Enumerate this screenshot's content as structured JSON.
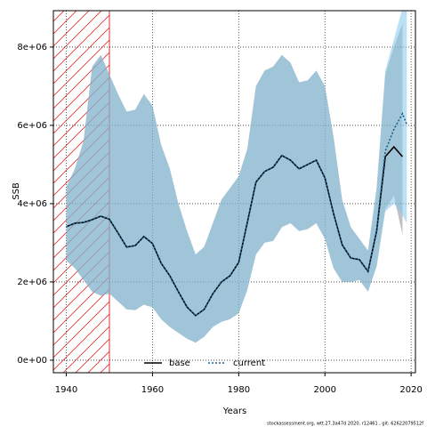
{
  "chart_data": {
    "type": "line",
    "x_label": "Years",
    "y_label": "SSB",
    "footer": "stockassessment.org, wtt.27.3a47d   2020, r12461 , git: 62622079512f",
    "x": [
      1940,
      1942,
      1944,
      1946,
      1948,
      1950,
      1952,
      1954,
      1956,
      1958,
      1960,
      1962,
      1964,
      1966,
      1968,
      1970,
      1972,
      1974,
      1976,
      1978,
      1980,
      1982,
      1984,
      1986,
      1988,
      1990,
      1992,
      1994,
      1996,
      1998,
      2000,
      2002,
      2004,
      2006,
      2008,
      2010,
      2012,
      2014,
      2016,
      2018,
      2019
    ],
    "series": [
      {
        "name": "base",
        "color": "#000000",
        "linestyle": "solid",
        "band_color": "rgba(120,120,120,0.45)",
        "values": [
          3410000.0,
          3500000.0,
          3520000.0,
          3590000.0,
          3680000.0,
          3600000.0,
          3250000.0,
          2890000.0,
          2930000.0,
          3160000.0,
          2980000.0,
          2480000.0,
          2160000.0,
          1750000.0,
          1360000.0,
          1140000.0,
          1300000.0,
          1700000.0,
          2000000.0,
          2160000.0,
          2500000.0,
          3520000.0,
          4550000.0,
          4820000.0,
          4930000.0,
          5230000.0,
          5110000.0,
          4890000.0,
          5000000.0,
          5110000.0,
          4660000.0,
          3750000.0,
          2950000.0,
          2610000.0,
          2570000.0,
          2270000.0,
          3300000.0,
          5200000.0,
          5450000.0,
          5200000.0,
          null
        ],
        "upper": [
          4430000.0,
          4900000.0,
          5600000.0,
          7500000.0,
          7800000.0,
          7300000.0,
          6800000.0,
          6350000.0,
          6400000.0,
          6800000.0,
          6500000.0,
          5500000.0,
          4900000.0,
          4000000.0,
          3300000.0,
          2700000.0,
          2900000.0,
          3500000.0,
          4100000.0,
          4400000.0,
          4700000.0,
          5400000.0,
          7000000.0,
          7400000.0,
          7500000.0,
          7800000.0,
          7600000.0,
          7100000.0,
          7150000.0,
          7400000.0,
          7000000.0,
          5700000.0,
          4100000.0,
          3400000.0,
          3100000.0,
          2800000.0,
          4400000.0,
          7300000.0,
          8000000.0,
          8600000.0,
          null
        ],
        "lower": [
          2550000.0,
          2350000.0,
          2050000.0,
          1750000.0,
          1650000.0,
          1700000.0,
          1500000.0,
          1300000.0,
          1280000.0,
          1420000.0,
          1350000.0,
          1050000.0,
          850000.0,
          700000.0,
          550000.0,
          450000.0,
          600000.0,
          850000.0,
          980000.0,
          1050000.0,
          1200000.0,
          1800000.0,
          2700000.0,
          3000000.0,
          3050000.0,
          3400000.0,
          3500000.0,
          3300000.0,
          3350000.0,
          3500000.0,
          3100000.0,
          2350000.0,
          2000000.0,
          2000000.0,
          2050000.0,
          1750000.0,
          2400000.0,
          3850000.0,
          4200000.0,
          3200000.0,
          null
        ]
      },
      {
        "name": "current",
        "color": "#1b5e8c",
        "linestyle": "dotted",
        "band_color": "rgba(135,200,235,0.55)",
        "values": [
          3410000.0,
          3500000.0,
          3520000.0,
          3590000.0,
          3680000.0,
          3600000.0,
          3250000.0,
          2890000.0,
          2930000.0,
          3160000.0,
          2980000.0,
          2480000.0,
          2160000.0,
          1750000.0,
          1360000.0,
          1140000.0,
          1300000.0,
          1700000.0,
          2000000.0,
          2160000.0,
          2500000.0,
          3520000.0,
          4550000.0,
          4820000.0,
          4930000.0,
          5230000.0,
          5110000.0,
          4890000.0,
          5000000.0,
          5110000.0,
          4660000.0,
          3750000.0,
          2950000.0,
          2610000.0,
          2570000.0,
          2270000.0,
          3300000.0,
          5340000.0,
          5900000.0,
          6300000.0,
          6020000.0
        ],
        "upper": [
          4430000.0,
          4900000.0,
          5600000.0,
          7500000.0,
          7800000.0,
          7300000.0,
          6800000.0,
          6350000.0,
          6400000.0,
          6800000.0,
          6500000.0,
          5500000.0,
          4900000.0,
          4000000.0,
          3300000.0,
          2700000.0,
          2900000.0,
          3500000.0,
          4100000.0,
          4400000.0,
          4700000.0,
          5400000.0,
          7000000.0,
          7400000.0,
          7500000.0,
          7800000.0,
          7600000.0,
          7100000.0,
          7150000.0,
          7400000.0,
          7000000.0,
          5700000.0,
          4100000.0,
          3400000.0,
          3100000.0,
          2800000.0,
          4400000.0,
          7400000.0,
          8200000.0,
          9000000.0,
          9000000.0
        ],
        "lower": [
          2550000.0,
          2350000.0,
          2050000.0,
          1750000.0,
          1650000.0,
          1700000.0,
          1500000.0,
          1300000.0,
          1280000.0,
          1420000.0,
          1350000.0,
          1050000.0,
          850000.0,
          700000.0,
          550000.0,
          450000.0,
          600000.0,
          850000.0,
          980000.0,
          1050000.0,
          1200000.0,
          1800000.0,
          2700000.0,
          3000000.0,
          3050000.0,
          3400000.0,
          3500000.0,
          3300000.0,
          3350000.0,
          3500000.0,
          3100000.0,
          2350000.0,
          2000000.0,
          2000000.0,
          2050000.0,
          1750000.0,
          2400000.0,
          3800000.0,
          4000000.0,
          3700000.0,
          3500000.0
        ]
      }
    ],
    "hatch_range": [
      1937,
      1950
    ],
    "hatch_color": "#e03030",
    "xlim": [
      1937,
      2021
    ],
    "ylim": [
      -320000,
      8930000
    ],
    "xticks": [
      1940,
      1960,
      1980,
      2000,
      2020
    ],
    "yticks": [
      {
        "value": 0,
        "label": "0e+00"
      },
      {
        "value": 2000000,
        "label": "2e+06"
      },
      {
        "value": 4000000,
        "label": "4e+06"
      },
      {
        "value": 6000000,
        "label": "6e+06"
      },
      {
        "value": 8000000,
        "label": "8e+06"
      }
    ],
    "grid": true,
    "legend": "bottom"
  }
}
